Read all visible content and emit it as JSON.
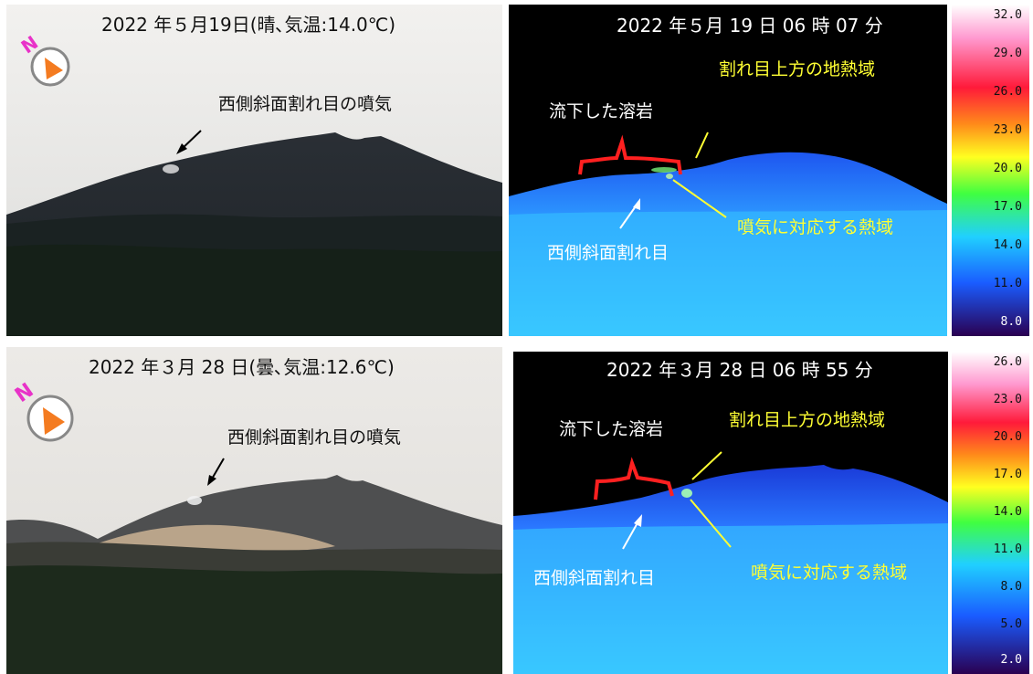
{
  "panels": {
    "top_visible": {
      "title": "2022 年５月19日(晴､気温:14.0℃)",
      "annotation": "西側斜面割れ目の噴気",
      "compass_letter": "N",
      "compass_icon": "compass-icon"
    },
    "top_thermal": {
      "title": "2022 年５月 19 日 06 時 07 分",
      "lava_label": "流下した溶岩",
      "upper_label": "割れ目上方の地熱域",
      "fissure_label": "西側斜面割れ目",
      "heat_label": "噴気に対応する熱域",
      "scale_ticks": [
        "32.0",
        "29.0",
        "26.0",
        "23.0",
        "20.0",
        "17.0",
        "14.0",
        "11.0",
        "8.0"
      ]
    },
    "bottom_visible": {
      "title": "2022 年３月 28 日(曇､気温:12.6℃)",
      "annotation": "西側斜面割れ目の噴気",
      "compass_letter": "N",
      "compass_icon": "compass-icon"
    },
    "bottom_thermal": {
      "title": "2022 年３月 28 日 06 時 55 分",
      "lava_label": "流下した溶岩",
      "upper_label": "割れ目上方の地熱域",
      "fissure_label": "西側斜面割れ目",
      "heat_label": "噴気に対応する熱域",
      "scale_ticks": [
        "26.0",
        "23.0",
        "20.0",
        "17.0",
        "14.0",
        "11.0",
        "8.0",
        "5.0",
        "2.0"
      ]
    }
  },
  "colors": {
    "annotation_yellow": "#ffff33",
    "bracket_red": "#ff2020",
    "thermal_cold": "#1e60ff",
    "thermal_mid": "#35c6ff"
  }
}
